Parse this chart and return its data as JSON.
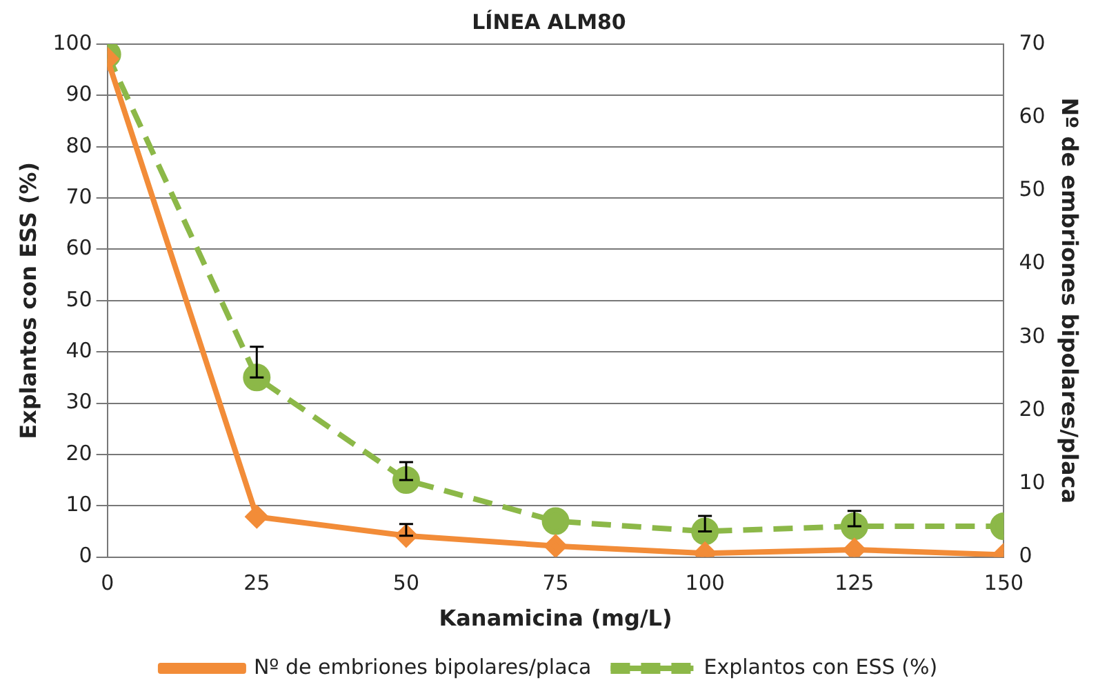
{
  "chart_data": {
    "type": "line",
    "title": "LÍNEA ALM80",
    "xlabel": "Kanamicina (mg/L)",
    "ylabel": "Explantos con ESS (%)",
    "y2label": "Nº de embriones bipolares/placa",
    "x": [
      0,
      25,
      50,
      75,
      100,
      125,
      150
    ],
    "series": [
      {
        "name": "Explantos con ESS (%)",
        "color": "#8cb848",
        "values": [
          98,
          35,
          15,
          7,
          5,
          6,
          6
        ],
        "errors": [
          null,
          [
            35,
            41
          ],
          [
            15,
            18.5
          ],
          null,
          [
            5,
            8
          ],
          [
            6,
            9
          ],
          null
        ],
        "marker": "circle",
        "line_style": "dashed"
      },
      {
        "name": "Nº de embriones bipolares/placa",
        "color": "#f28c38",
        "axis": "y2",
        "values": [
          68,
          5.5,
          2.9,
          1.5,
          0.5,
          1,
          0.3
        ],
        "errors": [
          null,
          null,
          [
            2.9,
            4.5
          ],
          null,
          null,
          null,
          null
        ],
        "marker": "diamond",
        "line_style": "solid"
      }
    ],
    "xlim": [
      0,
      150
    ],
    "xticks": [
      0,
      25,
      50,
      75,
      100,
      125,
      150
    ],
    "ylim": [
      0,
      100
    ],
    "yticks": [
      0,
      10,
      20,
      30,
      40,
      50,
      60,
      70,
      80,
      90,
      100
    ],
    "y2lim": [
      0,
      70
    ],
    "y2ticks": [
      0,
      10,
      20,
      30,
      40,
      50,
      60,
      70
    ],
    "grid": "y",
    "legend": "bottom"
  }
}
